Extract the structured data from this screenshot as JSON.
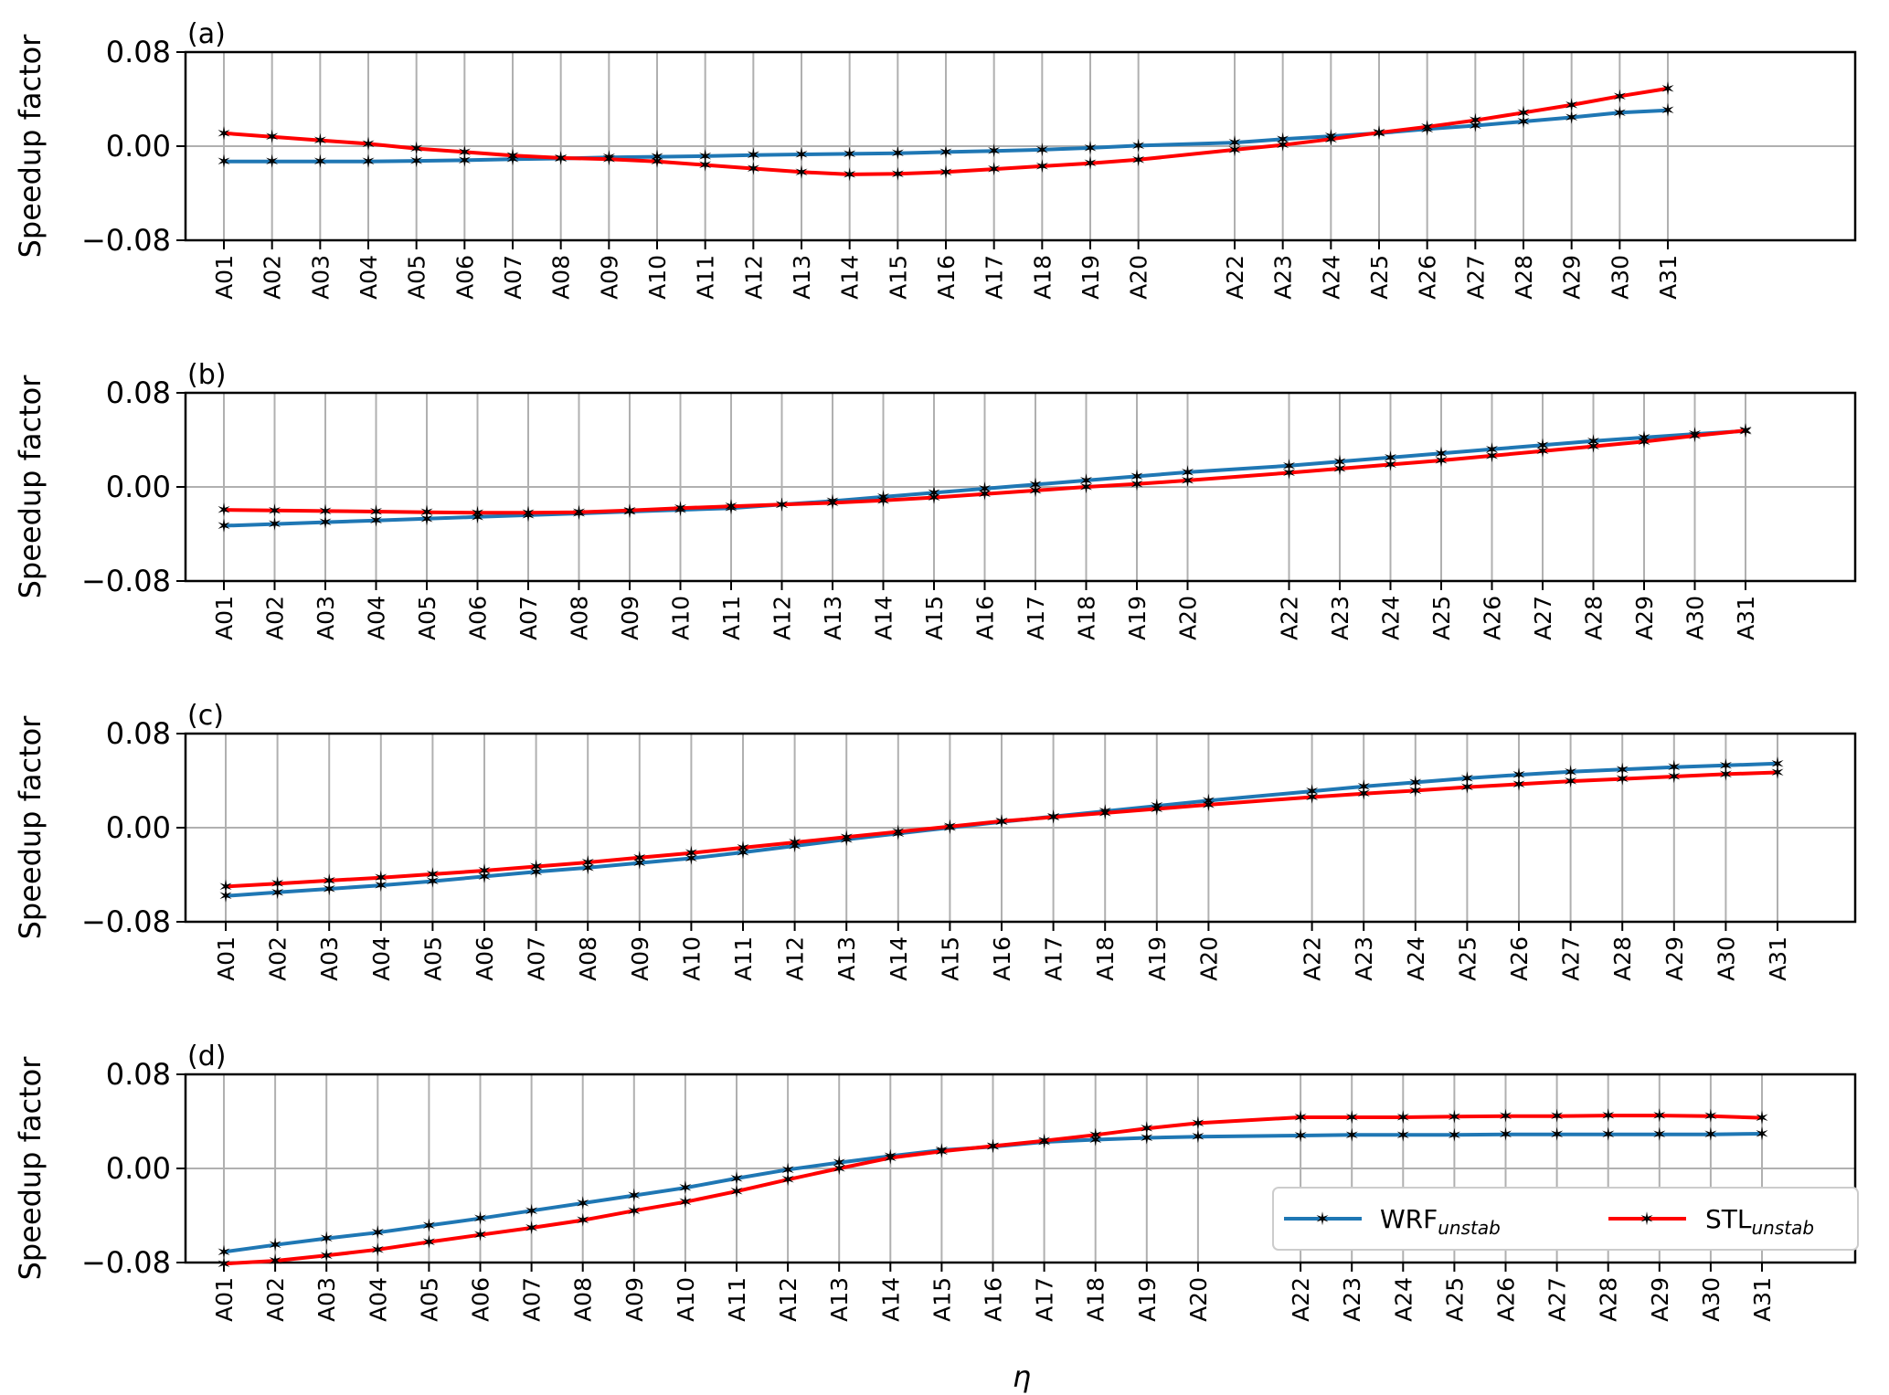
{
  "figure": {
    "ylabel": "Speedup factor",
    "xlabel": "η",
    "legend": {
      "placement": "lower right",
      "entries": [
        {
          "main": "WRF",
          "sub": "unstab",
          "color": "#1f77b4"
        },
        {
          "main": "STL",
          "sub": "unstab",
          "color": "#ff0000"
        }
      ]
    }
  },
  "chart_data": [
    {
      "panel": "(a)",
      "type": "line",
      "categories": [
        "A01",
        "A02",
        "A03",
        "A04",
        "A05",
        "A06",
        "A07",
        "A08",
        "A09",
        "A10",
        "A11",
        "A12",
        "A13",
        "A14",
        "A15",
        "A16",
        "A17",
        "A18",
        "A19",
        "A20",
        "A22",
        "A23",
        "A24",
        "A25",
        "A26",
        "A27",
        "A28",
        "A29",
        "A30",
        "A31"
      ],
      "yticks": [
        "0.08",
        "0.00",
        "−0.08"
      ],
      "ylim": [
        -0.08,
        0.08
      ],
      "grid": true,
      "series": [
        {
          "name": "WRF",
          "color": "#1f77b4",
          "values": [
            -0.013,
            -0.013,
            -0.013,
            -0.013,
            -0.0125,
            -0.012,
            -0.011,
            -0.0105,
            -0.0095,
            -0.009,
            -0.0085,
            -0.0075,
            -0.007,
            -0.0065,
            -0.006,
            -0.005,
            -0.004,
            -0.003,
            -0.0015,
            0.0005,
            0.003,
            0.006,
            0.0085,
            0.011,
            0.0145,
            0.0175,
            0.021,
            0.0245,
            0.0285,
            0.0305
          ]
        },
        {
          "name": "STL",
          "color": "#ff0000",
          "values": [
            0.011,
            0.008,
            0.005,
            0.002,
            -0.002,
            -0.005,
            -0.008,
            -0.01,
            -0.011,
            -0.013,
            -0.016,
            -0.019,
            -0.022,
            -0.024,
            -0.0235,
            -0.022,
            -0.0195,
            -0.017,
            -0.0145,
            -0.0115,
            -0.003,
            0.001,
            0.006,
            0.0115,
            0.0165,
            0.022,
            0.0285,
            0.035,
            0.0425,
            0.049
          ]
        }
      ]
    },
    {
      "panel": "(b)",
      "type": "line",
      "categories": [
        "A01",
        "A02",
        "A03",
        "A04",
        "A05",
        "A06",
        "A07",
        "A08",
        "A09",
        "A10",
        "A11",
        "A12",
        "A13",
        "A14",
        "A15",
        "A16",
        "A17",
        "A18",
        "A19",
        "A20",
        "A22",
        "A23",
        "A24",
        "A25",
        "A26",
        "A27",
        "A28",
        "A29",
        "A30",
        "A31"
      ],
      "yticks": [
        "0.08",
        "0.00",
        "−0.08"
      ],
      "ylim": [
        -0.08,
        0.08
      ],
      "grid": true,
      "series": [
        {
          "name": "WRF",
          "color": "#1f77b4",
          "values": [
            -0.033,
            -0.0315,
            -0.03,
            -0.0285,
            -0.027,
            -0.0255,
            -0.024,
            -0.0225,
            -0.021,
            -0.0195,
            -0.018,
            -0.015,
            -0.012,
            -0.0085,
            -0.005,
            -0.0015,
            0.002,
            0.0055,
            0.009,
            0.0125,
            0.018,
            0.0215,
            0.025,
            0.0285,
            0.032,
            0.0355,
            0.039,
            0.042,
            0.045,
            0.0475
          ]
        },
        {
          "name": "STL",
          "color": "#ff0000",
          "values": [
            -0.0195,
            -0.02,
            -0.0205,
            -0.021,
            -0.0215,
            -0.022,
            -0.022,
            -0.0215,
            -0.02,
            -0.018,
            -0.0165,
            -0.015,
            -0.0135,
            -0.0115,
            -0.009,
            -0.006,
            -0.003,
            0.0,
            0.0025,
            0.0055,
            0.012,
            0.0155,
            0.019,
            0.0225,
            0.0265,
            0.0305,
            0.0345,
            0.0385,
            0.0435,
            0.048
          ]
        }
      ]
    },
    {
      "panel": "(c)",
      "type": "line",
      "categories": [
        "A01",
        "A02",
        "A03",
        "A04",
        "A05",
        "A06",
        "A07",
        "A08",
        "A09",
        "A10",
        "A11",
        "A12",
        "A13",
        "A14",
        "A15",
        "A16",
        "A17",
        "A18",
        "A19",
        "A20",
        "A22",
        "A23",
        "A24",
        "A25",
        "A26",
        "A27",
        "A28",
        "A29",
        "A30",
        "A31"
      ],
      "yticks": [
        "0.08",
        "0.00",
        "−0.08"
      ],
      "ylim": [
        -0.08,
        0.08
      ],
      "grid": true,
      "series": [
        {
          "name": "WRF",
          "color": "#1f77b4",
          "values": [
            -0.058,
            -0.055,
            -0.052,
            -0.049,
            -0.0455,
            -0.0415,
            -0.0375,
            -0.034,
            -0.03,
            -0.026,
            -0.021,
            -0.0155,
            -0.01,
            -0.005,
            0.0,
            0.005,
            0.0095,
            0.014,
            0.0185,
            0.023,
            0.031,
            0.035,
            0.0385,
            0.042,
            0.045,
            0.0475,
            0.0495,
            0.0515,
            0.053,
            0.0545
          ]
        },
        {
          "name": "STL",
          "color": "#ff0000",
          "values": [
            -0.05,
            -0.0475,
            -0.045,
            -0.0425,
            -0.0395,
            -0.0365,
            -0.033,
            -0.0295,
            -0.0255,
            -0.0215,
            -0.017,
            -0.0125,
            -0.008,
            -0.0035,
            0.001,
            0.0055,
            0.009,
            0.0125,
            0.016,
            0.0195,
            0.026,
            0.029,
            0.0315,
            0.0345,
            0.037,
            0.0395,
            0.0415,
            0.0435,
            0.0455,
            0.047
          ]
        }
      ]
    },
    {
      "panel": "(d)",
      "type": "line",
      "categories": [
        "A01",
        "A02",
        "A03",
        "A04",
        "A05",
        "A06",
        "A07",
        "A08",
        "A09",
        "A10",
        "A11",
        "A12",
        "A13",
        "A14",
        "A15",
        "A16",
        "A17",
        "A18",
        "A19",
        "A20",
        "A22",
        "A23",
        "A24",
        "A25",
        "A26",
        "A27",
        "A28",
        "A29",
        "A30",
        "A31"
      ],
      "yticks": [
        "0.08",
        "0.00",
        "−0.08"
      ],
      "ylim": [
        -0.08,
        0.08
      ],
      "grid": true,
      "series": [
        {
          "name": "WRF",
          "color": "#1f77b4",
          "values": [
            -0.071,
            -0.065,
            -0.0595,
            -0.0545,
            -0.0485,
            -0.0425,
            -0.036,
            -0.0295,
            -0.023,
            -0.0165,
            -0.0085,
            -0.001,
            0.005,
            0.0105,
            0.0155,
            0.0185,
            0.0225,
            0.0245,
            0.026,
            0.027,
            0.028,
            0.0285,
            0.0285,
            0.0285,
            0.029,
            0.029,
            0.029,
            0.029,
            0.029,
            0.0295
          ]
        },
        {
          "name": "STL",
          "color": "#ff0000",
          "values": [
            -0.081,
            -0.0785,
            -0.074,
            -0.069,
            -0.0625,
            -0.0565,
            -0.0505,
            -0.044,
            -0.036,
            -0.0285,
            -0.0195,
            -0.0095,
            0.0,
            0.009,
            0.0145,
            0.019,
            0.0235,
            0.0285,
            0.034,
            0.0385,
            0.0435,
            0.0435,
            0.0435,
            0.044,
            0.0445,
            0.0445,
            0.045,
            0.045,
            0.0445,
            0.043
          ]
        }
      ]
    }
  ]
}
